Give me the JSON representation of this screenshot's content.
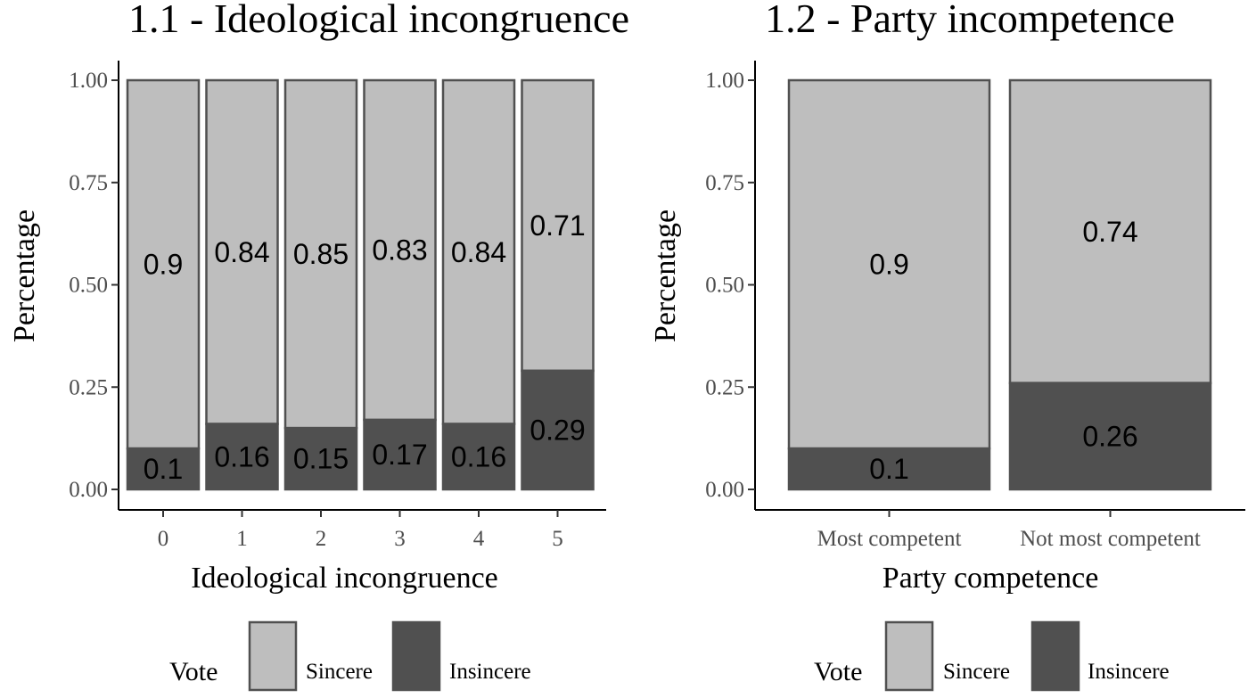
{
  "chart_data": [
    {
      "type": "bar",
      "stacked": true,
      "title": "1.1 - Ideological incongruence",
      "xlabel": "Ideological incongruence",
      "ylabel": "Percentage",
      "ylim": [
        0,
        1
      ],
      "yticks": [
        "0.00",
        "0.25",
        "0.50",
        "0.75",
        "1.00"
      ],
      "categories": [
        "0",
        "1",
        "2",
        "3",
        "4",
        "5"
      ],
      "series": [
        {
          "name": "Insincere",
          "values": [
            0.1,
            0.16,
            0.15,
            0.17,
            0.16,
            0.29
          ],
          "labels": [
            "0.1",
            "0.16",
            "0.15",
            "0.17",
            "0.16",
            "0.29"
          ],
          "color": "#505050"
        },
        {
          "name": "Sincere",
          "values": [
            0.9,
            0.84,
            0.85,
            0.83,
            0.84,
            0.71
          ],
          "labels": [
            "0.9",
            "0.84",
            "0.85",
            "0.83",
            "0.84",
            "0.71"
          ],
          "color": "#bebebe"
        }
      ],
      "legend": {
        "title": "Vote",
        "position": "bottom",
        "items": [
          "Sincere",
          "Insincere"
        ]
      },
      "grid": false
    },
    {
      "type": "bar",
      "stacked": true,
      "title": "1.2 - Party incompetence",
      "xlabel": "Party competence",
      "ylabel": "Percentage",
      "ylim": [
        0,
        1
      ],
      "yticks": [
        "0.00",
        "0.25",
        "0.50",
        "0.75",
        "1.00"
      ],
      "categories": [
        "Most competent",
        "Not most competent"
      ],
      "series": [
        {
          "name": "Insincere",
          "values": [
            0.1,
            0.26
          ],
          "labels": [
            "0.1",
            "0.26"
          ],
          "color": "#505050"
        },
        {
          "name": "Sincere",
          "values": [
            0.9,
            0.74
          ],
          "labels": [
            "0.9",
            "0.74"
          ],
          "color": "#bebebe"
        }
      ],
      "legend": {
        "title": "Vote",
        "position": "bottom",
        "items": [
          "Sincere",
          "Insincere"
        ]
      },
      "grid": false
    }
  ]
}
